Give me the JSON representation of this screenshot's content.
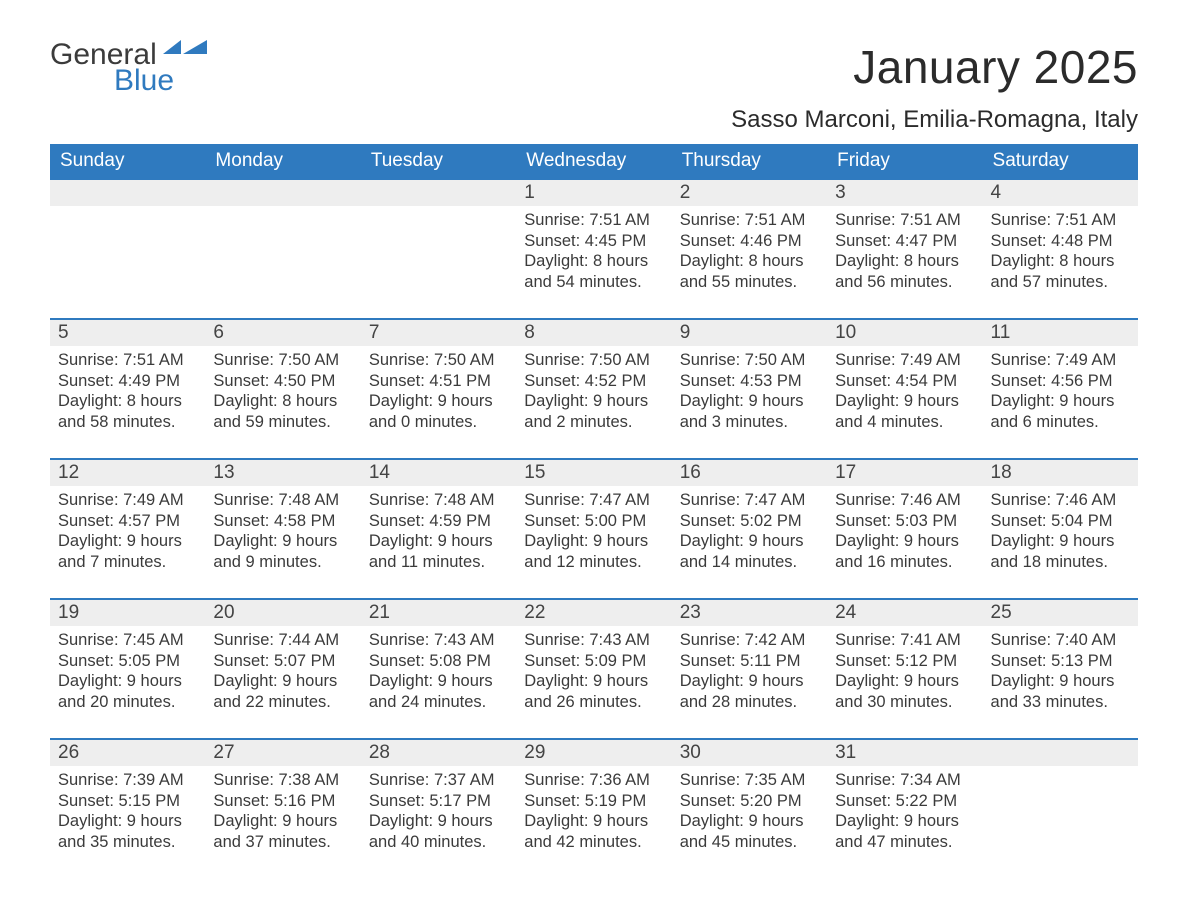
{
  "brand": {
    "general": "General",
    "blue": "Blue",
    "accent_color": "#2f7abf"
  },
  "title": "January 2025",
  "location": "Sasso Marconi, Emilia-Romagna, Italy",
  "day_headers": [
    "Sunday",
    "Monday",
    "Tuesday",
    "Wednesday",
    "Thursday",
    "Friday",
    "Saturday"
  ],
  "calendar": {
    "type": "table",
    "columns": 7,
    "rows": 5,
    "colors": {
      "header_bg": "#2f7abf",
      "header_fg": "#ffffff",
      "daynum_bg": "#eeeeee",
      "row_border": "#2f7abf",
      "text": "#3b3b3b",
      "bg": "#ffffff"
    },
    "fonts": {
      "title_size": 46,
      "location_size": 24,
      "header_size": 19,
      "daynum_size": 19,
      "body_size": 16.5,
      "family": "Arial"
    }
  },
  "weeks": [
    [
      null,
      null,
      null,
      {
        "n": "1",
        "sunrise": "Sunrise: 7:51 AM",
        "sunset": "Sunset: 4:45 PM",
        "d1": "Daylight: 8 hours",
        "d2": "and 54 minutes."
      },
      {
        "n": "2",
        "sunrise": "Sunrise: 7:51 AM",
        "sunset": "Sunset: 4:46 PM",
        "d1": "Daylight: 8 hours",
        "d2": "and 55 minutes."
      },
      {
        "n": "3",
        "sunrise": "Sunrise: 7:51 AM",
        "sunset": "Sunset: 4:47 PM",
        "d1": "Daylight: 8 hours",
        "d2": "and 56 minutes."
      },
      {
        "n": "4",
        "sunrise": "Sunrise: 7:51 AM",
        "sunset": "Sunset: 4:48 PM",
        "d1": "Daylight: 8 hours",
        "d2": "and 57 minutes."
      }
    ],
    [
      {
        "n": "5",
        "sunrise": "Sunrise: 7:51 AM",
        "sunset": "Sunset: 4:49 PM",
        "d1": "Daylight: 8 hours",
        "d2": "and 58 minutes."
      },
      {
        "n": "6",
        "sunrise": "Sunrise: 7:50 AM",
        "sunset": "Sunset: 4:50 PM",
        "d1": "Daylight: 8 hours",
        "d2": "and 59 minutes."
      },
      {
        "n": "7",
        "sunrise": "Sunrise: 7:50 AM",
        "sunset": "Sunset: 4:51 PM",
        "d1": "Daylight: 9 hours",
        "d2": "and 0 minutes."
      },
      {
        "n": "8",
        "sunrise": "Sunrise: 7:50 AM",
        "sunset": "Sunset: 4:52 PM",
        "d1": "Daylight: 9 hours",
        "d2": "and 2 minutes."
      },
      {
        "n": "9",
        "sunrise": "Sunrise: 7:50 AM",
        "sunset": "Sunset: 4:53 PM",
        "d1": "Daylight: 9 hours",
        "d2": "and 3 minutes."
      },
      {
        "n": "10",
        "sunrise": "Sunrise: 7:49 AM",
        "sunset": "Sunset: 4:54 PM",
        "d1": "Daylight: 9 hours",
        "d2": "and 4 minutes."
      },
      {
        "n": "11",
        "sunrise": "Sunrise: 7:49 AM",
        "sunset": "Sunset: 4:56 PM",
        "d1": "Daylight: 9 hours",
        "d2": "and 6 minutes."
      }
    ],
    [
      {
        "n": "12",
        "sunrise": "Sunrise: 7:49 AM",
        "sunset": "Sunset: 4:57 PM",
        "d1": "Daylight: 9 hours",
        "d2": "and 7 minutes."
      },
      {
        "n": "13",
        "sunrise": "Sunrise: 7:48 AM",
        "sunset": "Sunset: 4:58 PM",
        "d1": "Daylight: 9 hours",
        "d2": "and 9 minutes."
      },
      {
        "n": "14",
        "sunrise": "Sunrise: 7:48 AM",
        "sunset": "Sunset: 4:59 PM",
        "d1": "Daylight: 9 hours",
        "d2": "and 11 minutes."
      },
      {
        "n": "15",
        "sunrise": "Sunrise: 7:47 AM",
        "sunset": "Sunset: 5:00 PM",
        "d1": "Daylight: 9 hours",
        "d2": "and 12 minutes."
      },
      {
        "n": "16",
        "sunrise": "Sunrise: 7:47 AM",
        "sunset": "Sunset: 5:02 PM",
        "d1": "Daylight: 9 hours",
        "d2": "and 14 minutes."
      },
      {
        "n": "17",
        "sunrise": "Sunrise: 7:46 AM",
        "sunset": "Sunset: 5:03 PM",
        "d1": "Daylight: 9 hours",
        "d2": "and 16 minutes."
      },
      {
        "n": "18",
        "sunrise": "Sunrise: 7:46 AM",
        "sunset": "Sunset: 5:04 PM",
        "d1": "Daylight: 9 hours",
        "d2": "and 18 minutes."
      }
    ],
    [
      {
        "n": "19",
        "sunrise": "Sunrise: 7:45 AM",
        "sunset": "Sunset: 5:05 PM",
        "d1": "Daylight: 9 hours",
        "d2": "and 20 minutes."
      },
      {
        "n": "20",
        "sunrise": "Sunrise: 7:44 AM",
        "sunset": "Sunset: 5:07 PM",
        "d1": "Daylight: 9 hours",
        "d2": "and 22 minutes."
      },
      {
        "n": "21",
        "sunrise": "Sunrise: 7:43 AM",
        "sunset": "Sunset: 5:08 PM",
        "d1": "Daylight: 9 hours",
        "d2": "and 24 minutes."
      },
      {
        "n": "22",
        "sunrise": "Sunrise: 7:43 AM",
        "sunset": "Sunset: 5:09 PM",
        "d1": "Daylight: 9 hours",
        "d2": "and 26 minutes."
      },
      {
        "n": "23",
        "sunrise": "Sunrise: 7:42 AM",
        "sunset": "Sunset: 5:11 PM",
        "d1": "Daylight: 9 hours",
        "d2": "and 28 minutes."
      },
      {
        "n": "24",
        "sunrise": "Sunrise: 7:41 AM",
        "sunset": "Sunset: 5:12 PM",
        "d1": "Daylight: 9 hours",
        "d2": "and 30 minutes."
      },
      {
        "n": "25",
        "sunrise": "Sunrise: 7:40 AM",
        "sunset": "Sunset: 5:13 PM",
        "d1": "Daylight: 9 hours",
        "d2": "and 33 minutes."
      }
    ],
    [
      {
        "n": "26",
        "sunrise": "Sunrise: 7:39 AM",
        "sunset": "Sunset: 5:15 PM",
        "d1": "Daylight: 9 hours",
        "d2": "and 35 minutes."
      },
      {
        "n": "27",
        "sunrise": "Sunrise: 7:38 AM",
        "sunset": "Sunset: 5:16 PM",
        "d1": "Daylight: 9 hours",
        "d2": "and 37 minutes."
      },
      {
        "n": "28",
        "sunrise": "Sunrise: 7:37 AM",
        "sunset": "Sunset: 5:17 PM",
        "d1": "Daylight: 9 hours",
        "d2": "and 40 minutes."
      },
      {
        "n": "29",
        "sunrise": "Sunrise: 7:36 AM",
        "sunset": "Sunset: 5:19 PM",
        "d1": "Daylight: 9 hours",
        "d2": "and 42 minutes."
      },
      {
        "n": "30",
        "sunrise": "Sunrise: 7:35 AM",
        "sunset": "Sunset: 5:20 PM",
        "d1": "Daylight: 9 hours",
        "d2": "and 45 minutes."
      },
      {
        "n": "31",
        "sunrise": "Sunrise: 7:34 AM",
        "sunset": "Sunset: 5:22 PM",
        "d1": "Daylight: 9 hours",
        "d2": "and 47 minutes."
      },
      null
    ]
  ]
}
